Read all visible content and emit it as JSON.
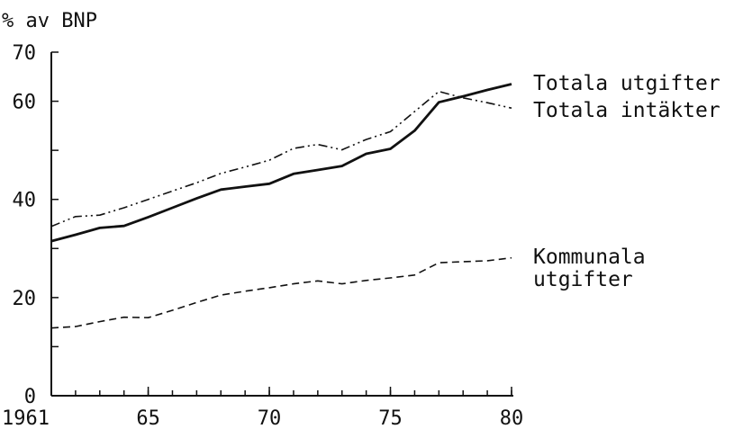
{
  "chart_data": {
    "type": "line",
    "title": "",
    "ylabel": "% av BNP",
    "xlabel": "",
    "xlim": [
      1961,
      1980
    ],
    "ylim": [
      0,
      70
    ],
    "grid": false,
    "y_major_ticks": [
      0,
      20,
      40,
      60,
      70
    ],
    "y_minor_ticks": [
      10,
      30,
      50
    ],
    "x_ticks": [
      {
        "value": 1961,
        "label": "1961"
      },
      {
        "value": 1965,
        "label": "65"
      },
      {
        "value": 1970,
        "label": "70"
      },
      {
        "value": 1975,
        "label": "75"
      },
      {
        "value": 1980,
        "label": "80"
      }
    ],
    "series": [
      {
        "name": "Totala utgifter",
        "style": "solid",
        "color": "#111111",
        "x": [
          1961,
          1962,
          1963,
          1964,
          1965,
          1966,
          1967,
          1968,
          1969,
          1970,
          1971,
          1972,
          1973,
          1974,
          1975,
          1976,
          1977,
          1978,
          1979,
          1980
        ],
        "y": [
          31.5,
          32.8,
          34.2,
          34.6,
          36.4,
          38.3,
          40.2,
          42.0,
          42.6,
          43.2,
          45.2,
          46.0,
          46.8,
          49.3,
          50.3,
          54.0,
          59.8,
          61.0,
          62.3,
          63.5
        ]
      },
      {
        "name": "Totala intäkter",
        "style": "dashdotdot",
        "color": "#111111",
        "x": [
          1961,
          1962,
          1963,
          1964,
          1965,
          1966,
          1967,
          1968,
          1969,
          1970,
          1971,
          1972,
          1973,
          1974,
          1975,
          1976,
          1977,
          1978,
          1979,
          1980
        ],
        "y": [
          34.5,
          36.5,
          36.8,
          38.3,
          40.0,
          41.7,
          43.4,
          45.3,
          46.6,
          48.0,
          50.4,
          51.2,
          50.1,
          52.2,
          53.8,
          57.9,
          62.0,
          60.7,
          59.7,
          58.6
        ]
      },
      {
        "name": "Kommunala utgifter",
        "style": "dashed",
        "color": "#111111",
        "x": [
          1961,
          1962,
          1963,
          1964,
          1965,
          1966,
          1967,
          1968,
          1969,
          1970,
          1971,
          1972,
          1973,
          1974,
          1975,
          1976,
          1977,
          1978,
          1979,
          1980
        ],
        "y": [
          13.8,
          14.1,
          15.1,
          16.0,
          15.9,
          17.4,
          19.0,
          20.5,
          21.3,
          22.0,
          22.8,
          23.4,
          22.8,
          23.5,
          24.0,
          24.6,
          27.1,
          27.3,
          27.5,
          28.1
        ]
      }
    ],
    "labels": {
      "totala_utgifter": "Totala utgifter",
      "totala_intakter": "Totala intäkter",
      "kommunala_line1": "Kommunala",
      "kommunala_line2": "utgifter"
    }
  }
}
